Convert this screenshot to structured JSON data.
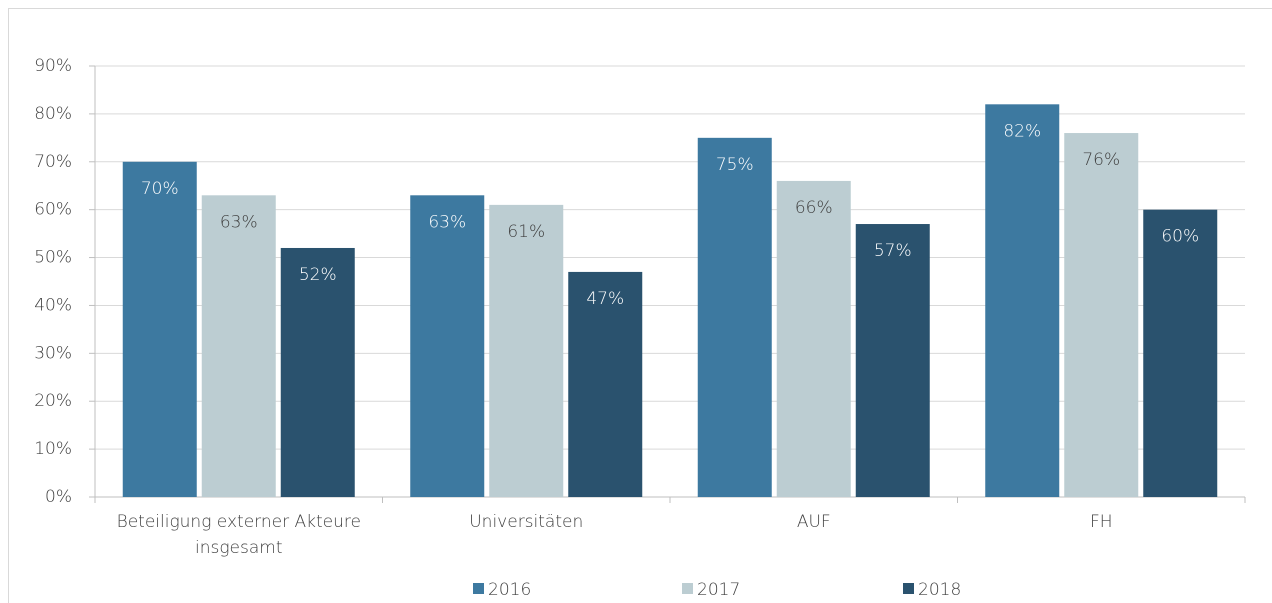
{
  "chart_data": {
    "type": "bar",
    "categories": [
      "Beteiligung externer Akteure insgesamt",
      "Universitäten",
      "AUF",
      "FH"
    ],
    "series": [
      {
        "name": "2016",
        "color": "#3d79a0",
        "values": [
          70,
          63,
          75,
          82
        ],
        "value_labels": [
          "70%",
          "63%",
          "75%",
          "82%"
        ]
      },
      {
        "name": "2017",
        "color": "#bccdd2",
        "values": [
          63,
          61,
          66,
          76
        ],
        "value_labels": [
          "63%",
          "61%",
          "66%",
          "76%"
        ]
      },
      {
        "name": "2018",
        "color": "#2a526e",
        "values": [
          52,
          47,
          57,
          60
        ],
        "value_labels": [
          "52%",
          "47%",
          "57%",
          "60%"
        ]
      }
    ],
    "ylim": [
      0,
      90
    ],
    "yticks": [
      {
        "value": 0,
        "label": "0%"
      },
      {
        "value": 10,
        "label": "10%"
      },
      {
        "value": 20,
        "label": "20%"
      },
      {
        "value": 30,
        "label": "30%"
      },
      {
        "value": 40,
        "label": "40%"
      },
      {
        "value": 50,
        "label": "50%"
      },
      {
        "value": 60,
        "label": "60%"
      },
      {
        "value": 70,
        "label": "70%"
      },
      {
        "value": 80,
        "label": "80%"
      },
      {
        "value": 90,
        "label": "90%"
      }
    ],
    "grid": true,
    "legend": "bottom"
  }
}
